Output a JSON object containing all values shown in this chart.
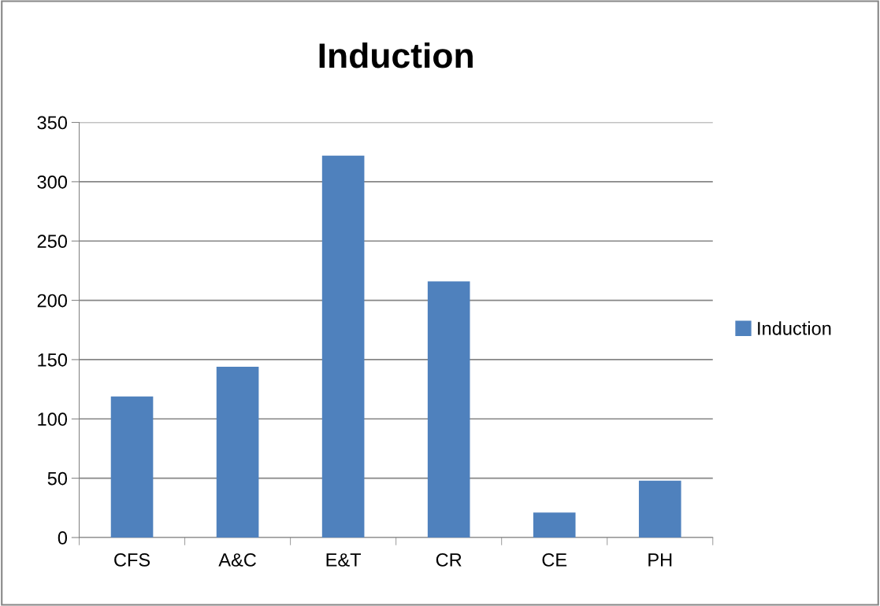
{
  "chart_data": {
    "type": "bar",
    "title": "Induction",
    "categories": [
      "CFS",
      "A&C",
      "E&T",
      "CR",
      "CE",
      "PH"
    ],
    "series": [
      {
        "name": "Induction",
        "color": "#4f81bd",
        "values": [
          119,
          144,
          322,
          216,
          21,
          48
        ]
      }
    ],
    "ylim": [
      0,
      350
    ],
    "yticks": [
      0,
      50,
      100,
      150,
      200,
      250,
      300,
      350
    ],
    "grid": "y",
    "legend": "right"
  }
}
